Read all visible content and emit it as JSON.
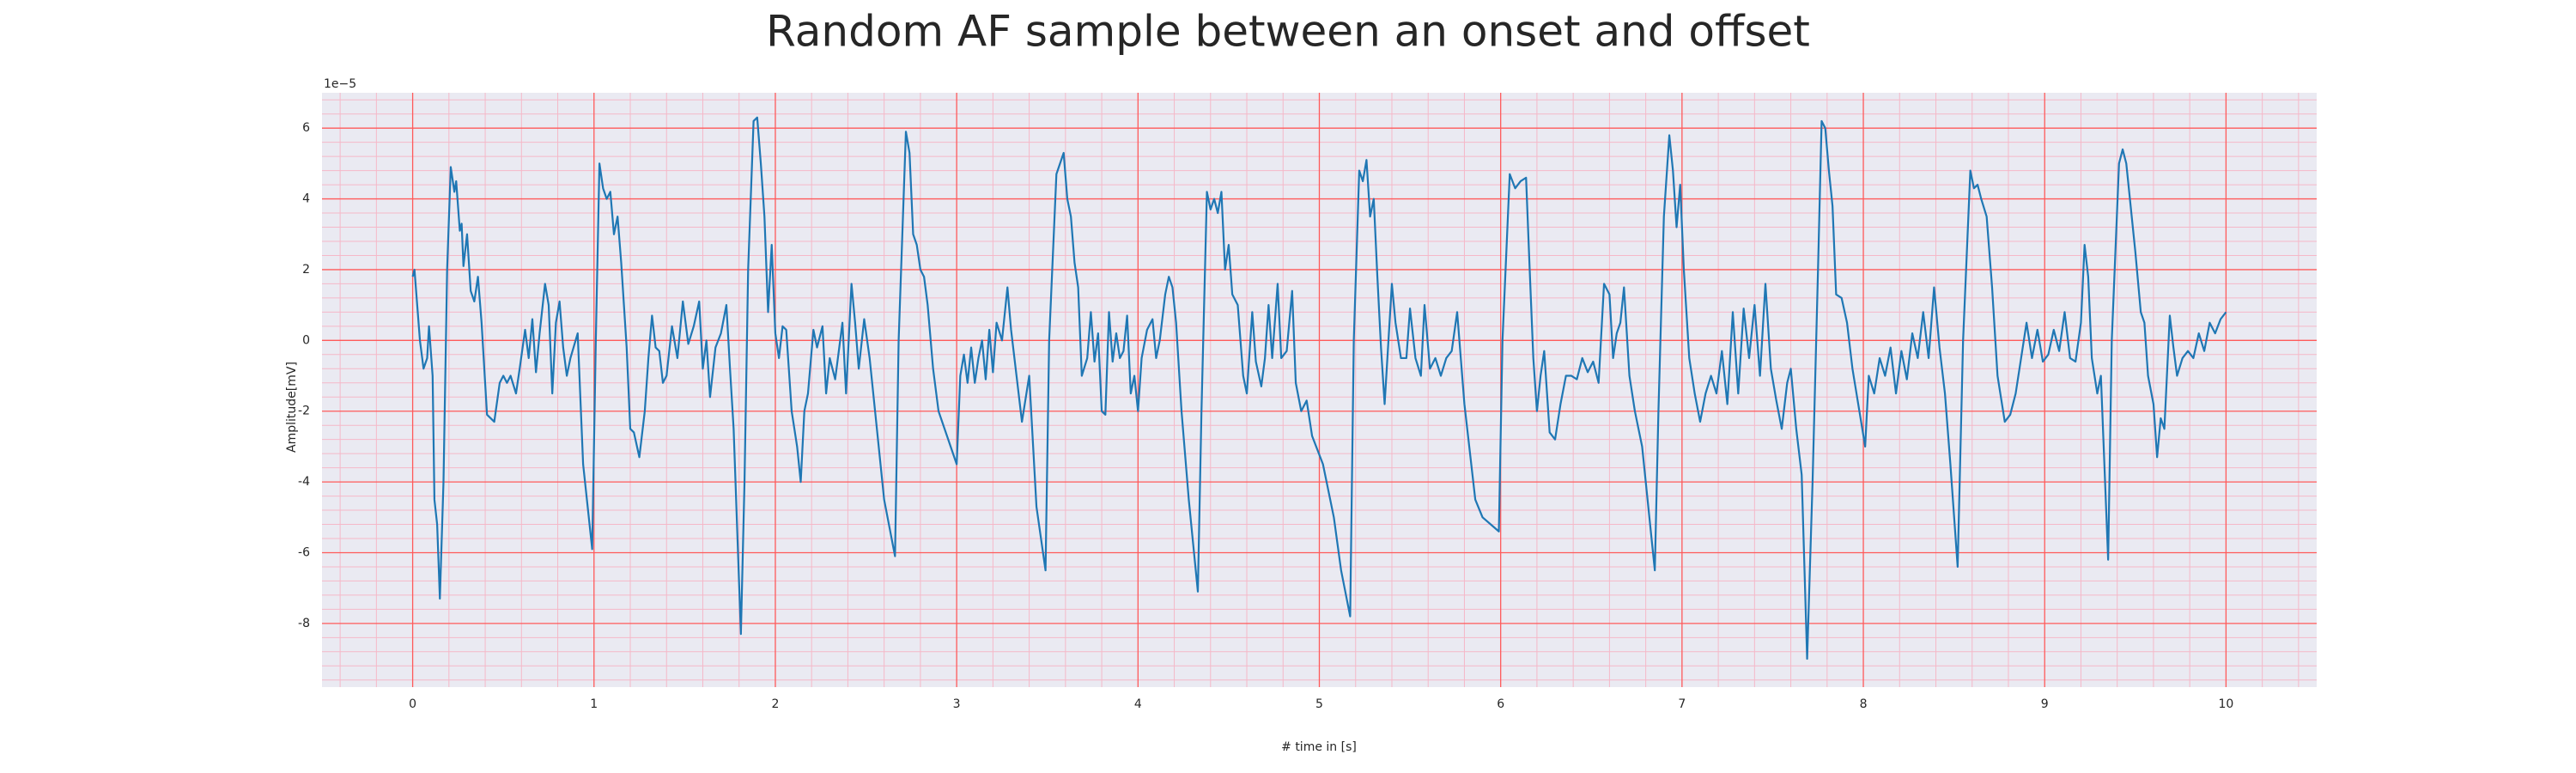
{
  "chart_data": {
    "type": "line",
    "title": "Random AF sample between an onset and offset",
    "xlabel": "# time in [s]",
    "ylabel": "Amplitude[mV]",
    "y_offset_label": "1e−5",
    "color": "#1f77b4",
    "background": "#eaeaf2",
    "grid": true,
    "grid_color": "#ff5a5a",
    "minor_grid": true,
    "minor_grid_color": "#f5b8c8",
    "xlim": [
      -0.5,
      10.5
    ],
    "ylim": [
      -9.8,
      7.0
    ],
    "xticks": [
      0,
      1,
      2,
      3,
      4,
      5,
      6,
      7,
      8,
      9,
      10
    ],
    "yticks": [
      -8,
      -6,
      -4,
      -2,
      0,
      2,
      4,
      6
    ],
    "x": [
      0,
      0.01,
      0.04,
      0.06,
      0.08,
      0.09,
      0.11,
      0.12,
      0.135,
      0.15,
      0.17,
      0.19,
      0.21,
      0.23,
      0.24,
      0.26,
      0.27,
      0.28,
      0.3,
      0.32,
      0.34,
      0.36,
      0.38,
      0.41,
      0.43,
      0.45,
      0.48,
      0.5,
      0.52,
      0.54,
      0.57,
      0.59,
      0.62,
      0.64,
      0.66,
      0.68,
      0.7,
      0.73,
      0.75,
      0.77,
      0.79,
      0.81,
      0.83,
      0.85,
      0.87,
      0.91,
      0.94,
      0.99,
      1.01,
      1.03,
      1.05,
      1.07,
      1.09,
      1.11,
      1.13,
      1.15,
      1.18,
      1.2,
      1.22,
      1.25,
      1.28,
      1.3,
      1.32,
      1.34,
      1.36,
      1.38,
      1.4,
      1.43,
      1.46,
      1.49,
      1.52,
      1.55,
      1.58,
      1.6,
      1.62,
      1.64,
      1.67,
      1.7,
      1.73,
      1.75,
      1.77,
      1.81,
      1.83,
      1.85,
      1.88,
      1.9,
      1.92,
      1.94,
      1.96,
      1.98,
      2.0,
      2.02,
      2.04,
      2.06,
      2.09,
      2.12,
      2.14,
      2.16,
      2.18,
      2.21,
      2.23,
      2.26,
      2.28,
      2.3,
      2.33,
      2.35,
      2.37,
      2.39,
      2.42,
      2.44,
      2.46,
      2.49,
      2.52,
      2.56,
      2.6,
      2.66,
      2.68,
      2.72,
      2.74,
      2.76,
      2.78,
      2.8,
      2.82,
      2.84,
      2.87,
      2.9,
      3.0,
      3.02,
      3.04,
      3.06,
      3.08,
      3.1,
      3.12,
      3.14,
      3.16,
      3.18,
      3.2,
      3.22,
      3.25,
      3.28,
      3.3,
      3.33,
      3.36,
      3.4,
      3.44,
      3.49,
      3.51,
      3.55,
      3.59,
      3.61,
      3.63,
      3.65,
      3.67,
      3.69,
      3.72,
      3.74,
      3.76,
      3.78,
      3.8,
      3.82,
      3.84,
      3.86,
      3.88,
      3.9,
      3.92,
      3.94,
      3.96,
      3.98,
      4.0,
      4.02,
      4.05,
      4.08,
      4.1,
      4.12,
      4.15,
      4.17,
      4.19,
      4.21,
      4.24,
      4.28,
      4.33,
      4.35,
      4.38,
      4.4,
      4.42,
      4.44,
      4.46,
      4.48,
      4.5,
      4.52,
      4.55,
      4.58,
      4.6,
      4.63,
      4.65,
      4.68,
      4.7,
      4.72,
      4.74,
      4.77,
      4.79,
      4.82,
      4.85,
      4.87,
      4.9,
      4.93,
      4.96,
      5.02,
      5.08,
      5.12,
      5.17,
      5.19,
      5.22,
      5.24,
      5.26,
      5.28,
      5.3,
      5.32,
      5.34,
      5.36,
      5.4,
      5.42,
      5.45,
      5.48,
      5.5,
      5.53,
      5.56,
      5.58,
      5.61,
      5.64,
      5.67,
      5.7,
      5.73,
      5.76,
      5.8,
      5.86,
      5.9,
      5.99,
      6.01,
      6.05,
      6.08,
      6.11,
      6.14,
      6.16,
      6.18,
      6.2,
      6.22,
      6.24,
      6.27,
      6.3,
      6.33,
      6.36,
      6.39,
      6.42,
      6.45,
      6.48,
      6.51,
      6.54,
      6.57,
      6.6,
      6.62,
      6.64,
      6.66,
      6.68,
      6.71,
      6.74,
      6.78,
      6.85,
      6.87,
      6.9,
      6.93,
      6.95,
      6.97,
      6.99,
      7.01,
      7.04,
      7.07,
      7.1,
      7.13,
      7.16,
      7.19,
      7.22,
      7.25,
      7.28,
      7.31,
      7.34,
      7.37,
      7.4,
      7.43,
      7.46,
      7.49,
      7.52,
      7.55,
      7.58,
      7.6,
      7.63,
      7.66,
      7.69,
      7.72,
      7.75,
      7.77,
      7.79,
      7.81,
      7.83,
      7.85,
      7.88,
      7.91,
      7.94,
      8.01,
      8.03,
      8.06,
      8.09,
      8.12,
      8.15,
      8.18,
      8.21,
      8.24,
      8.27,
      8.3,
      8.33,
      8.36,
      8.39,
      8.42,
      8.45,
      8.48,
      8.52,
      8.55,
      8.59,
      8.61,
      8.63,
      8.65,
      8.68,
      8.71,
      8.74,
      8.78,
      8.81,
      8.84,
      8.87,
      8.9,
      8.93,
      8.96,
      8.99,
      9.02,
      9.05,
      9.08,
      9.11,
      9.14,
      9.17,
      9.2,
      9.22,
      9.24,
      9.26,
      9.29,
      9.31,
      9.35,
      9.37,
      9.41,
      9.43,
      9.45,
      9.48,
      9.5,
      9.53,
      9.55,
      9.57,
      9.6,
      9.62,
      9.64,
      9.66,
      9.69,
      9.71,
      9.73,
      9.76,
      9.79,
      9.82,
      9.85,
      9.88,
      9.91,
      9.94,
      9.97,
      10.0
    ],
    "values": [
      1.8,
      2.0,
      0,
      -0.8,
      -0.5,
      0.4,
      -1.0,
      -4.5,
      -5.2,
      -7.3,
      -4.0,
      2.0,
      4.9,
      4.2,
      4.5,
      3.1,
      3.3,
      2.1,
      3.0,
      1.4,
      1.1,
      1.8,
      0.5,
      -2.1,
      -2.2,
      -2.3,
      -1.2,
      -1.0,
      -1.2,
      -1.0,
      -1.5,
      -0.8,
      0.3,
      -0.5,
      0.6,
      -0.9,
      0.2,
      1.6,
      1.0,
      -1.5,
      0.5,
      1.1,
      -0.2,
      -1.0,
      -0.5,
      0.2,
      -3.5,
      -5.9,
      0,
      5.0,
      4.3,
      4.0,
      4.2,
      3.0,
      3.5,
      2.2,
      -0.2,
      -2.5,
      -2.6,
      -3.3,
      -2.0,
      -0.5,
      0.7,
      -0.2,
      -0.3,
      -1.2,
      -1.0,
      0.4,
      -0.5,
      1.1,
      -0.1,
      0.4,
      1.1,
      -0.8,
      0,
      -1.6,
      -0.2,
      0.2,
      1.0,
      -0.8,
      -2.5,
      -8.3,
      -4,
      2,
      6.2,
      6.3,
      5.0,
      3.5,
      0.8,
      2.7,
      0.2,
      -0.5,
      0.4,
      0.3,
      -2,
      -3.0,
      -4.0,
      -2.0,
      -1.5,
      0.3,
      -0.2,
      0.4,
      -1.5,
      -0.5,
      -1.1,
      -0.3,
      0.5,
      -1.5,
      1.6,
      0.5,
      -0.8,
      0.6,
      -0.5,
      -2.5,
      -4.5,
      -6.1,
      0,
      5.9,
      5.3,
      3.0,
      2.7,
      2.0,
      1.8,
      1.0,
      -0.8,
      -2.0,
      -3.5,
      -1.0,
      -0.4,
      -1.2,
      -0.2,
      -1.2,
      -0.5,
      0,
      -1.1,
      0.3,
      -0.9,
      0.5,
      0,
      1.5,
      0.3,
      -1.0,
      -2.3,
      -1.0,
      -4.7,
      -6.5,
      0,
      4.7,
      5.3,
      4.0,
      3.5,
      2.2,
      1.5,
      -1.0,
      -0.5,
      0.8,
      -0.6,
      0.2,
      -2.0,
      -2.1,
      0.8,
      -0.6,
      0.2,
      -0.5,
      -0.3,
      0.7,
      -1.5,
      -1.0,
      -2.0,
      -0.5,
      0.3,
      0.6,
      -0.5,
      0,
      1.3,
      1.8,
      1.5,
      0.5,
      -2.0,
      -4.5,
      -7.1,
      -2,
      4.2,
      3.7,
      4.0,
      3.6,
      4.2,
      2.0,
      2.7,
      1.3,
      1.0,
      -1.0,
      -1.5,
      0.8,
      -0.6,
      -1.3,
      -0.5,
      1.0,
      -0.5,
      1.6,
      -0.5,
      -0.3,
      1.4,
      -1.2,
      -2.0,
      -1.7,
      -2.7,
      -3.5,
      -5.0,
      -6.5,
      -7.8,
      0,
      4.8,
      4.5,
      5.1,
      3.5,
      4.0,
      1.8,
      -0.2,
      -1.8,
      1.6,
      0.5,
      -0.5,
      -0.5,
      0.9,
      -0.5,
      -1.0,
      1.0,
      -0.8,
      -0.5,
      -1.0,
      -0.5,
      -0.3,
      0.8,
      -1.8,
      -4.5,
      -5.0,
      -5.4,
      0,
      4.7,
      4.3,
      4.5,
      4.6,
      2.0,
      -0.5,
      -2.0,
      -1.0,
      -0.3,
      -2.6,
      -2.8,
      -1.8,
      -1.0,
      -1.0,
      -1.1,
      -0.5,
      -0.9,
      -0.6,
      -1.2,
      1.6,
      1.3,
      -0.5,
      0.2,
      0.5,
      1.5,
      -1.0,
      -2.0,
      -3.0,
      -6.5,
      -2,
      3.5,
      5.8,
      4.8,
      3.2,
      4.4,
      2.0,
      -0.5,
      -1.5,
      -2.3,
      -1.5,
      -1.0,
      -1.5,
      -0.3,
      -1.8,
      0.8,
      -1.5,
      0.9,
      -0.5,
      1.0,
      -1.0,
      1.6,
      -0.8,
      -1.7,
      -2.5,
      -1.2,
      -0.8,
      -2.5,
      -3.8,
      -9.0,
      -4,
      2,
      6.2,
      6.0,
      4.8,
      3.8,
      1.3,
      1.2,
      0.5,
      -0.8,
      -3.0,
      -1.0,
      -1.5,
      -0.5,
      -1.0,
      -0.2,
      -1.5,
      -0.3,
      -1.1,
      0.2,
      -0.5,
      0.8,
      -0.5,
      1.5,
      -0.2,
      -1.5,
      -3.5,
      -6.4,
      0,
      4.8,
      4.3,
      4.4,
      4.0,
      3.5,
      1.5,
      -1.0,
      -2.3,
      -2.1,
      -1.5,
      -0.5,
      0.5,
      -0.5,
      0.3,
      -0.6,
      -0.4,
      0.3,
      -0.3,
      0.8,
      -0.5,
      -0.6,
      0.5,
      2.7,
      1.8,
      -0.5,
      -1.5,
      -1.0,
      -6.2,
      0,
      5.0,
      5.4,
      5.0,
      3.5,
      2.5,
      0.8,
      0.5,
      -1.0,
      -1.8,
      -3.3,
      -2.2,
      -2.5,
      0.7,
      -0.2,
      -1.0,
      -0.5,
      -0.3,
      -0.5,
      0.2,
      -0.3,
      0.5,
      0.2,
      0.6,
      0.8
    ]
  }
}
